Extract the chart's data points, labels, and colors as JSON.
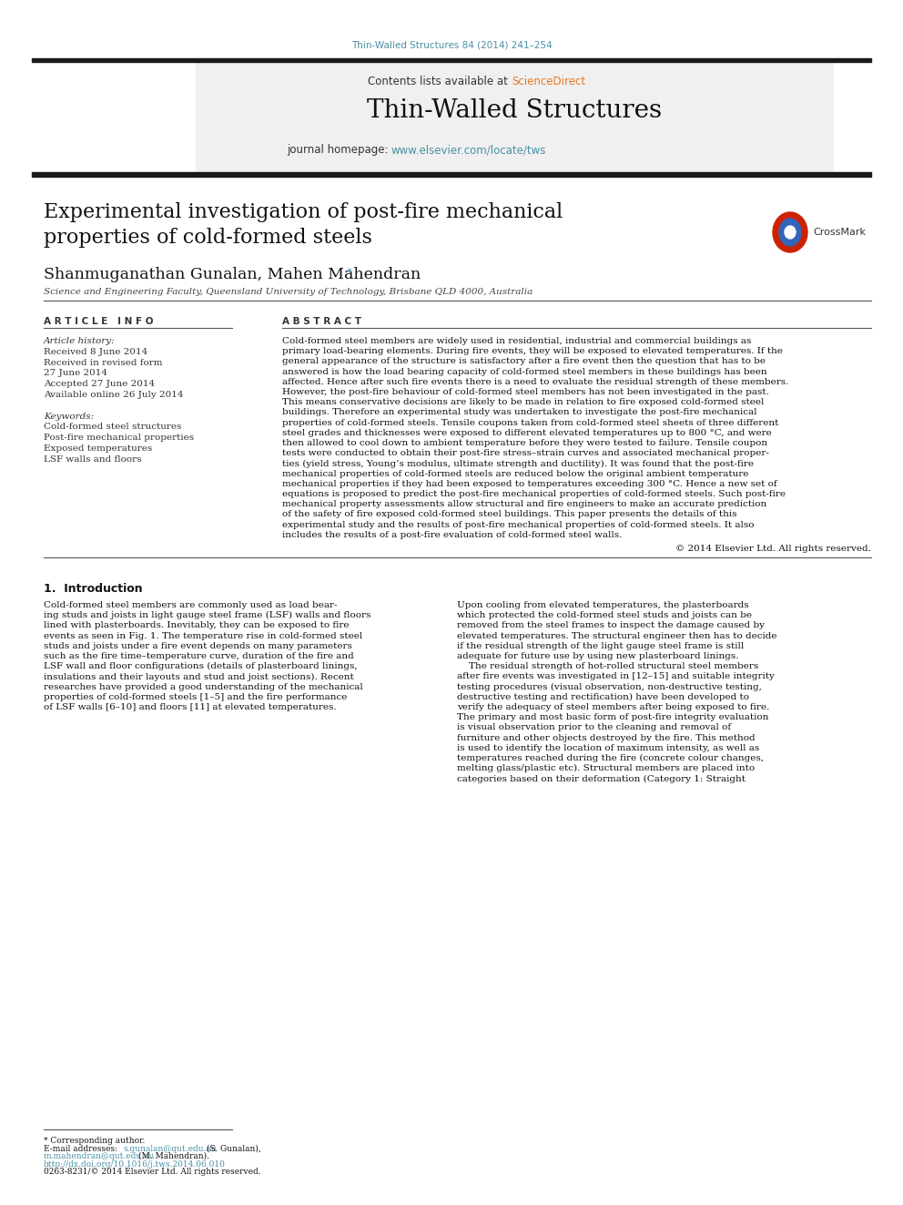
{
  "page_background": "#ffffff",
  "top_citation": "Thin-Walled Structures 84 (2014) 241–254",
  "top_citation_color": "#4a90a4",
  "header_bg": "#f0f0f0",
  "header_sciencedirect_color": "#e87722",
  "header_journal_name": "Thin-Walled Structures",
  "header_homepage_url": "www.elsevier.com/locate/tws",
  "header_url_color": "#4a90a4",
  "article_title": "Experimental investigation of post-fire mechanical\nproperties of cold-formed steels",
  "authors": "Shanmuganathan Gunalan, Mahen Mahendran",
  "affiliation": "Science and Engineering Faculty, Queensland University of Technology, Brisbane QLD 4000, Australia",
  "article_info_header": "A R T I C L E   I N F O",
  "abstract_header": "A B S T R A C T",
  "article_history_label": "Article history:",
  "received_label": "Received 8 June 2014",
  "revised_label": "Received in revised form",
  "revised_date": "27 June 2014",
  "accepted_label": "Accepted 27 June 2014",
  "available_label": "Available online 26 July 2014",
  "keywords_label": "Keywords:",
  "keywords": [
    "Cold-formed steel structures",
    "Post-fire mechanical properties",
    "Exposed temperatures",
    "LSF walls and floors"
  ],
  "copyright": "© 2014 Elsevier Ltd. All rights reserved.",
  "section1_header": "1.  Introduction",
  "footer_footnote": "* Corresponding author.",
  "footer_email_label": "E-mail addresses: ",
  "footer_email1_addr": "s.gunalan@qut.edu.au",
  "footer_email1_name": " (S. Gunalan),",
  "footer_email2_addr": "m.mahendran@qut.edu.au",
  "footer_email2_name": " (M. Mahendran).",
  "footer_doi": "http://dx.doi.org/10.1016/j.tws.2014.06.010",
  "footer_issn": "0263-8231/© 2014 Elsevier Ltd. All rights reserved.",
  "elsevier_color": "#ff6600",
  "dark_bar_color": "#1a1a1a",
  "separator_color": "#555555",
  "abstract_lines": [
    "Cold-formed steel members are widely used in residential, industrial and commercial buildings as",
    "primary load-bearing elements. During fire events, they will be exposed to elevated temperatures. If the",
    "general appearance of the structure is satisfactory after a fire event then the question that has to be",
    "answered is how the load bearing capacity of cold-formed steel members in these buildings has been",
    "affected. Hence after such fire events there is a need to evaluate the residual strength of these members.",
    "However, the post-fire behaviour of cold-formed steel members has not been investigated in the past.",
    "This means conservative decisions are likely to be made in relation to fire exposed cold-formed steel",
    "buildings. Therefore an experimental study was undertaken to investigate the post-fire mechanical",
    "properties of cold-formed steels. Tensile coupons taken from cold-formed steel sheets of three different",
    "steel grades and thicknesses were exposed to different elevated temperatures up to 800 °C, and were",
    "then allowed to cool down to ambient temperature before they were tested to failure. Tensile coupon",
    "tests were conducted to obtain their post-fire stress–strain curves and associated mechanical proper-",
    "ties (yield stress, Young’s modulus, ultimate strength and ductility). It was found that the post-fire",
    "mechanical properties of cold-formed steels are reduced below the original ambient temperature",
    "mechanical properties if they had been exposed to temperatures exceeding 300 °C. Hence a new set of",
    "equations is proposed to predict the post-fire mechanical properties of cold-formed steels. Such post-fire",
    "mechanical property assessments allow structural and fire engineers to make an accurate prediction",
    "of the safety of fire exposed cold-formed steel buildings. This paper presents the details of this",
    "experimental study and the results of post-fire mechanical properties of cold-formed steels. It also",
    "includes the results of a post-fire evaluation of cold-formed steel walls."
  ],
  "intro_col1_lines": [
    "Cold-formed steel members are commonly used as load bear-",
    "ing studs and joists in light gauge steel frame (LSF) walls and floors",
    "lined with plasterboards. Inevitably, they can be exposed to fire",
    "events as seen in Fig. 1. The temperature rise in cold-formed steel",
    "studs and joists under a fire event depends on many parameters",
    "such as the fire time–temperature curve, duration of the fire and",
    "LSF wall and floor configurations (details of plasterboard linings,",
    "insulations and their layouts and stud and joist sections). Recent",
    "researches have provided a good understanding of the mechanical",
    "properties of cold-formed steels [1–5] and the fire performance",
    "of LSF walls [6–10] and floors [11] at elevated temperatures."
  ],
  "intro_col2_lines": [
    "Upon cooling from elevated temperatures, the plasterboards",
    "which protected the cold-formed steel studs and joists can be",
    "removed from the steel frames to inspect the damage caused by",
    "elevated temperatures. The structural engineer then has to decide",
    "if the residual strength of the light gauge steel frame is still",
    "adequate for future use by using new plasterboard linings.",
    "    The residual strength of hot-rolled structural steel members",
    "after fire events was investigated in [12–15] and suitable integrity",
    "testing procedures (visual observation, non-destructive testing,",
    "destructive testing and rectification) have been developed to",
    "verify the adequacy of steel members after being exposed to fire.",
    "The primary and most basic form of post-fire integrity evaluation",
    "is visual observation prior to the cleaning and removal of",
    "furniture and other objects destroyed by the fire. This method",
    "is used to identify the location of maximum intensity, as well as",
    "temperatures reached during the fire (concrete colour changes,",
    "melting glass/plastic etc). Structural members are placed into",
    "categories based on their deformation (Category 1: Straight"
  ]
}
